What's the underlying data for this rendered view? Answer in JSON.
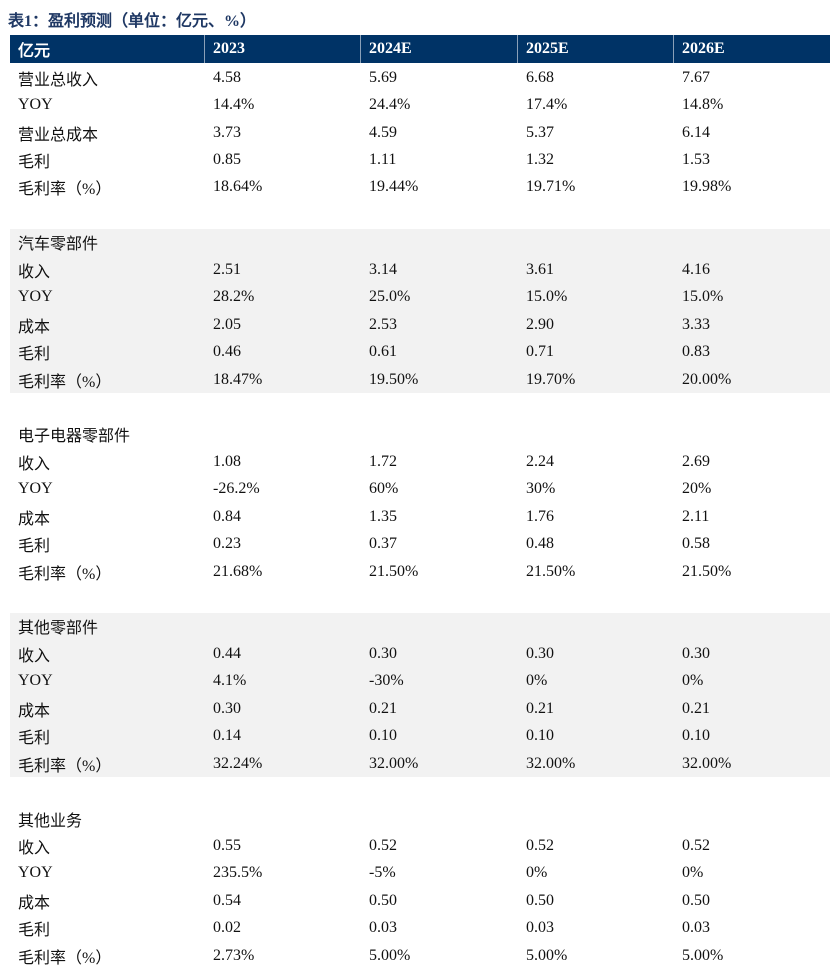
{
  "title": "表1：盈利预测（单位：亿元、%）",
  "header": [
    "亿元",
    "2023",
    "2024E",
    "2025E",
    "2026E"
  ],
  "sections": [
    {
      "title": "",
      "shaded": false,
      "rows": [
        [
          "营业总收入",
          "4.58",
          "5.69",
          "6.68",
          "7.67"
        ],
        [
          "YOY",
          "14.4%",
          "24.4%",
          "17.4%",
          "14.8%"
        ],
        [
          "营业总成本",
          "3.73",
          "4.59",
          "5.37",
          "6.14"
        ],
        [
          "毛利",
          "0.85",
          "1.11",
          "1.32",
          "1.53"
        ],
        [
          "毛利率（%）",
          "18.64%",
          "19.44%",
          "19.71%",
          "19.98%"
        ]
      ]
    },
    {
      "title": "汽车零部件",
      "shaded": true,
      "rows": [
        [
          "收入",
          "2.51",
          "3.14",
          "3.61",
          "4.16"
        ],
        [
          "YOY",
          "28.2%",
          "25.0%",
          "15.0%",
          "15.0%"
        ],
        [
          "成本",
          "2.05",
          "2.53",
          "2.90",
          "3.33"
        ],
        [
          "毛利",
          "0.46",
          "0.61",
          "0.71",
          "0.83"
        ],
        [
          "毛利率（%）",
          "18.47%",
          "19.50%",
          "19.70%",
          "20.00%"
        ]
      ]
    },
    {
      "title": "电子电器零部件",
      "shaded": false,
      "rows": [
        [
          "收入",
          "1.08",
          "1.72",
          "2.24",
          "2.69"
        ],
        [
          "YOY",
          "-26.2%",
          "60%",
          "30%",
          "20%"
        ],
        [
          "成本",
          "0.84",
          "1.35",
          "1.76",
          "2.11"
        ],
        [
          "毛利",
          "0.23",
          "0.37",
          "0.48",
          "0.58"
        ],
        [
          "毛利率（%）",
          "21.68%",
          "21.50%",
          "21.50%",
          "21.50%"
        ]
      ]
    },
    {
      "title": "其他零部件",
      "shaded": true,
      "rows": [
        [
          "收入",
          "0.44",
          "0.30",
          "0.30",
          "0.30"
        ],
        [
          "YOY",
          "4.1%",
          "-30%",
          "0%",
          "0%"
        ],
        [
          "成本",
          "0.30",
          "0.21",
          "0.21",
          "0.21"
        ],
        [
          "毛利",
          "0.14",
          "0.10",
          "0.10",
          "0.10"
        ],
        [
          "毛利率（%）",
          "32.24%",
          "32.00%",
          "32.00%",
          "32.00%"
        ]
      ]
    },
    {
      "title": "其他业务",
      "shaded": false,
      "rows": [
        [
          "收入",
          "0.55",
          "0.52",
          "0.52",
          "0.52"
        ],
        [
          "YOY",
          "235.5%",
          "-5%",
          "0%",
          "0%"
        ],
        [
          "成本",
          "0.54",
          "0.50",
          "0.50",
          "0.50"
        ],
        [
          "毛利",
          "0.02",
          "0.03",
          "0.03",
          "0.03"
        ],
        [
          "毛利率（%）",
          "2.73%",
          "5.00%",
          "5.00%",
          "5.00%"
        ]
      ]
    }
  ],
  "colors": {
    "header_bg": "#003366",
    "shade": "#f2f2f2",
    "title": "#1f3864"
  }
}
